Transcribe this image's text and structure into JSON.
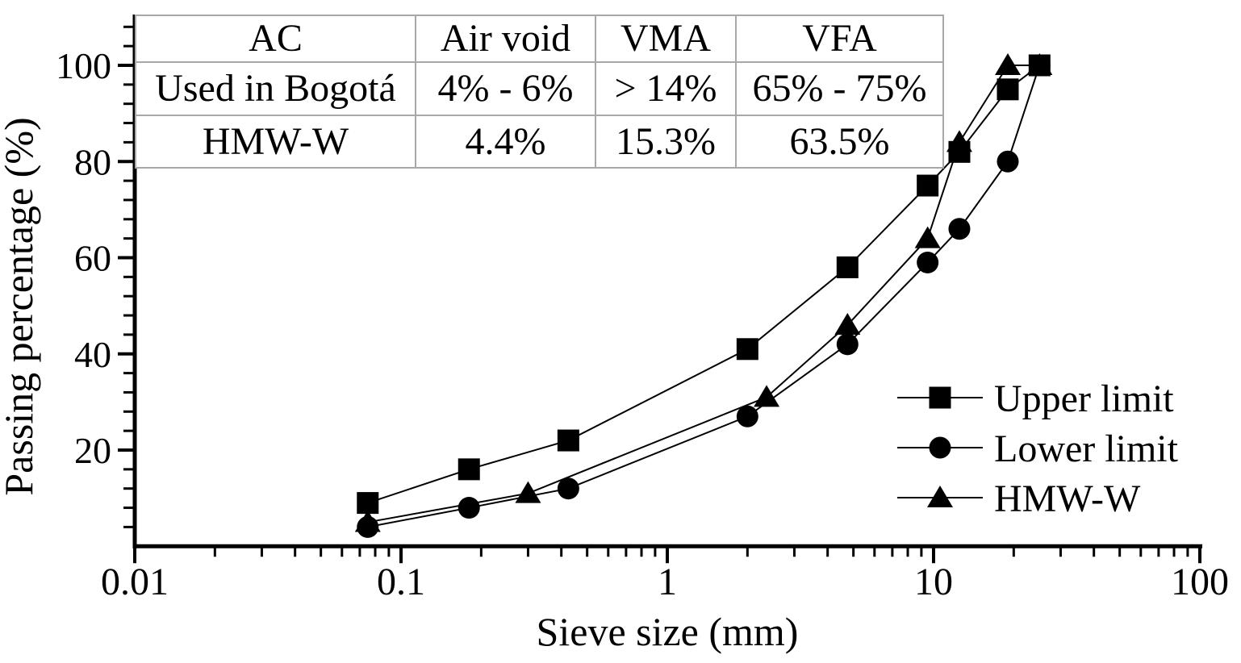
{
  "chart_data": {
    "type": "line",
    "title": "",
    "xlabel": "Sieve size (mm)",
    "ylabel": "Passing percentage (%)",
    "x_scale": "log",
    "xlim": [
      0.01,
      100
    ],
    "ylim": [
      0,
      112
    ],
    "grid": false,
    "x_ticks": [
      0.01,
      0.1,
      1,
      10,
      100
    ],
    "x_tick_labels": [
      "0.01",
      "0.1",
      "1",
      "10",
      "100"
    ],
    "y_ticks": [
      20,
      40,
      60,
      80,
      100
    ],
    "y_tick_labels": [
      "20",
      "40",
      "60",
      "80",
      "100"
    ],
    "y_minor_step": 4,
    "legend_position": "right-lower-inside",
    "series": [
      {
        "name": "Upper limit",
        "marker": "square",
        "color": "#000000",
        "points": [
          [
            0.075,
            9
          ],
          [
            0.18,
            16
          ],
          [
            0.425,
            22
          ],
          [
            2,
            41
          ],
          [
            4.75,
            58
          ],
          [
            9.5,
            75
          ],
          [
            12.5,
            82
          ],
          [
            19,
            95
          ],
          [
            25,
            100
          ]
        ]
      },
      {
        "name": "Lower limit",
        "marker": "circle",
        "color": "#000000",
        "points": [
          [
            0.075,
            4
          ],
          [
            0.18,
            8
          ],
          [
            0.425,
            12
          ],
          [
            2,
            27
          ],
          [
            4.75,
            42
          ],
          [
            9.5,
            59
          ],
          [
            12.5,
            66
          ],
          [
            19,
            80
          ],
          [
            25,
            100
          ]
        ]
      },
      {
        "name": "HMW-W",
        "marker": "triangle",
        "color": "#000000",
        "points": [
          [
            0.075,
            5
          ],
          [
            0.3,
            11
          ],
          [
            2.36,
            31
          ],
          [
            4.75,
            46
          ],
          [
            9.5,
            64
          ],
          [
            12.5,
            84
          ],
          [
            19,
            100
          ],
          [
            25,
            100
          ]
        ]
      }
    ]
  },
  "inset_table": {
    "headers": [
      "AC",
      "Air void",
      "VMA",
      "VFA"
    ],
    "rows": [
      [
        "Used in Bogotá",
        "4% - 6%",
        "> 14%",
        "65% - 75%"
      ],
      [
        "HMW-W",
        "4.4%",
        "15.3%",
        "63.5%"
      ]
    ]
  },
  "colors": {
    "foreground": "#000000",
    "background": "#ffffff",
    "table_border": "#a8a8a8"
  }
}
